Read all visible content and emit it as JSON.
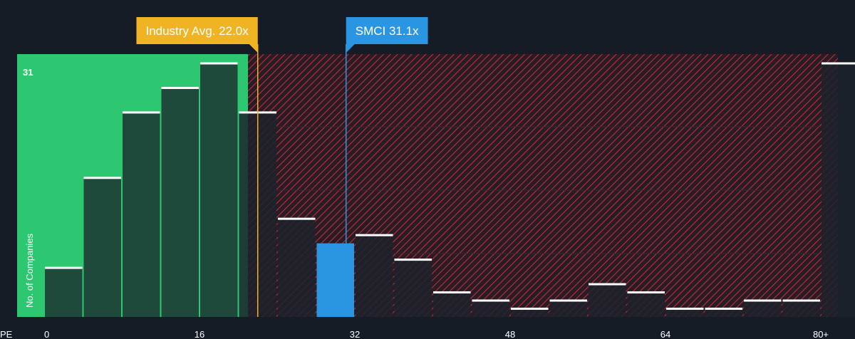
{
  "chart_data": {
    "type": "bar",
    "xlabel": "PE",
    "ylabel": "No. of Companies",
    "x_ticks": [
      "0",
      "16",
      "32",
      "48",
      "64",
      "80+"
    ],
    "x_tick_values": [
      0,
      16,
      32,
      48,
      64,
      80
    ],
    "y_tick_labels": [
      "31"
    ],
    "ymax": 31,
    "bin_width": 4,
    "bins": [
      {
        "start": 0,
        "count": 6
      },
      {
        "start": 4,
        "count": 17
      },
      {
        "start": 8,
        "count": 25
      },
      {
        "start": 12,
        "count": 28
      },
      {
        "start": 16,
        "count": 31
      },
      {
        "start": 20,
        "count": 25
      },
      {
        "start": 24,
        "count": 12
      },
      {
        "start": 28,
        "count": 9,
        "highlight": true
      },
      {
        "start": 32,
        "count": 10
      },
      {
        "start": 36,
        "count": 7
      },
      {
        "start": 40,
        "count": 3
      },
      {
        "start": 44,
        "count": 2
      },
      {
        "start": 48,
        "count": 1
      },
      {
        "start": 52,
        "count": 2
      },
      {
        "start": 56,
        "count": 4
      },
      {
        "start": 60,
        "count": 3
      },
      {
        "start": 64,
        "count": 1
      },
      {
        "start": 68,
        "count": 1
      },
      {
        "start": 72,
        "count": 2
      },
      {
        "start": 76,
        "count": 2
      },
      {
        "start": 80,
        "count": 31
      }
    ],
    "markers": [
      {
        "label": "Industry Avg. 22.0x",
        "value": 22.0,
        "color": "#f0b323"
      },
      {
        "label": "SMCI 31.1x",
        "value": 31.1,
        "color": "#2a96e3"
      }
    ],
    "fair_range_max": 21,
    "colors": {
      "background": "#161c26",
      "green_zone": "#2ec771",
      "green_bar": "#1f4a3b",
      "bar": "#1c222c",
      "highlight_bar": "#2a96e3",
      "hatch": "#c9303e",
      "hatch_bg": "#2a1c24"
    }
  }
}
